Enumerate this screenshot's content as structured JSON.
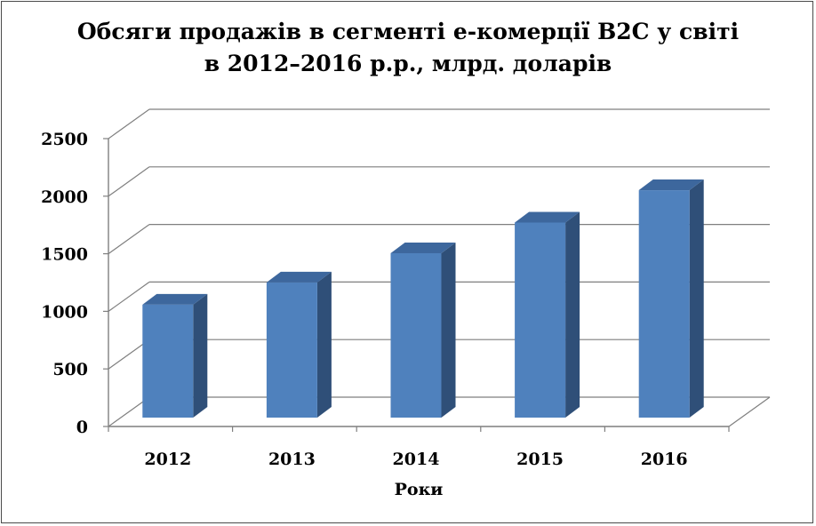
{
  "chart_data": {
    "type": "bar",
    "title_line1": "Обсяги продажів в сегменті е-комерції B2C у світі",
    "title_line2": "в 2012–2016 р.р., млрд. доларів",
    "categories": [
      "2012",
      "2013",
      "2014",
      "2015",
      "2016"
    ],
    "values": [
      1058,
      1251,
      1505,
      1771,
      2052
    ],
    "xlabel": "Роки",
    "ylabel": "",
    "ylim": [
      0,
      2500
    ],
    "yticks": [
      0,
      500,
      1000,
      1500,
      2000,
      2500
    ],
    "grid": true,
    "legend": "none",
    "style": "3d-column",
    "colors": {
      "front": "#4f81bd",
      "side": "#2f4f78",
      "top": "#3d679d",
      "grid": "#7f7f7f"
    }
  }
}
